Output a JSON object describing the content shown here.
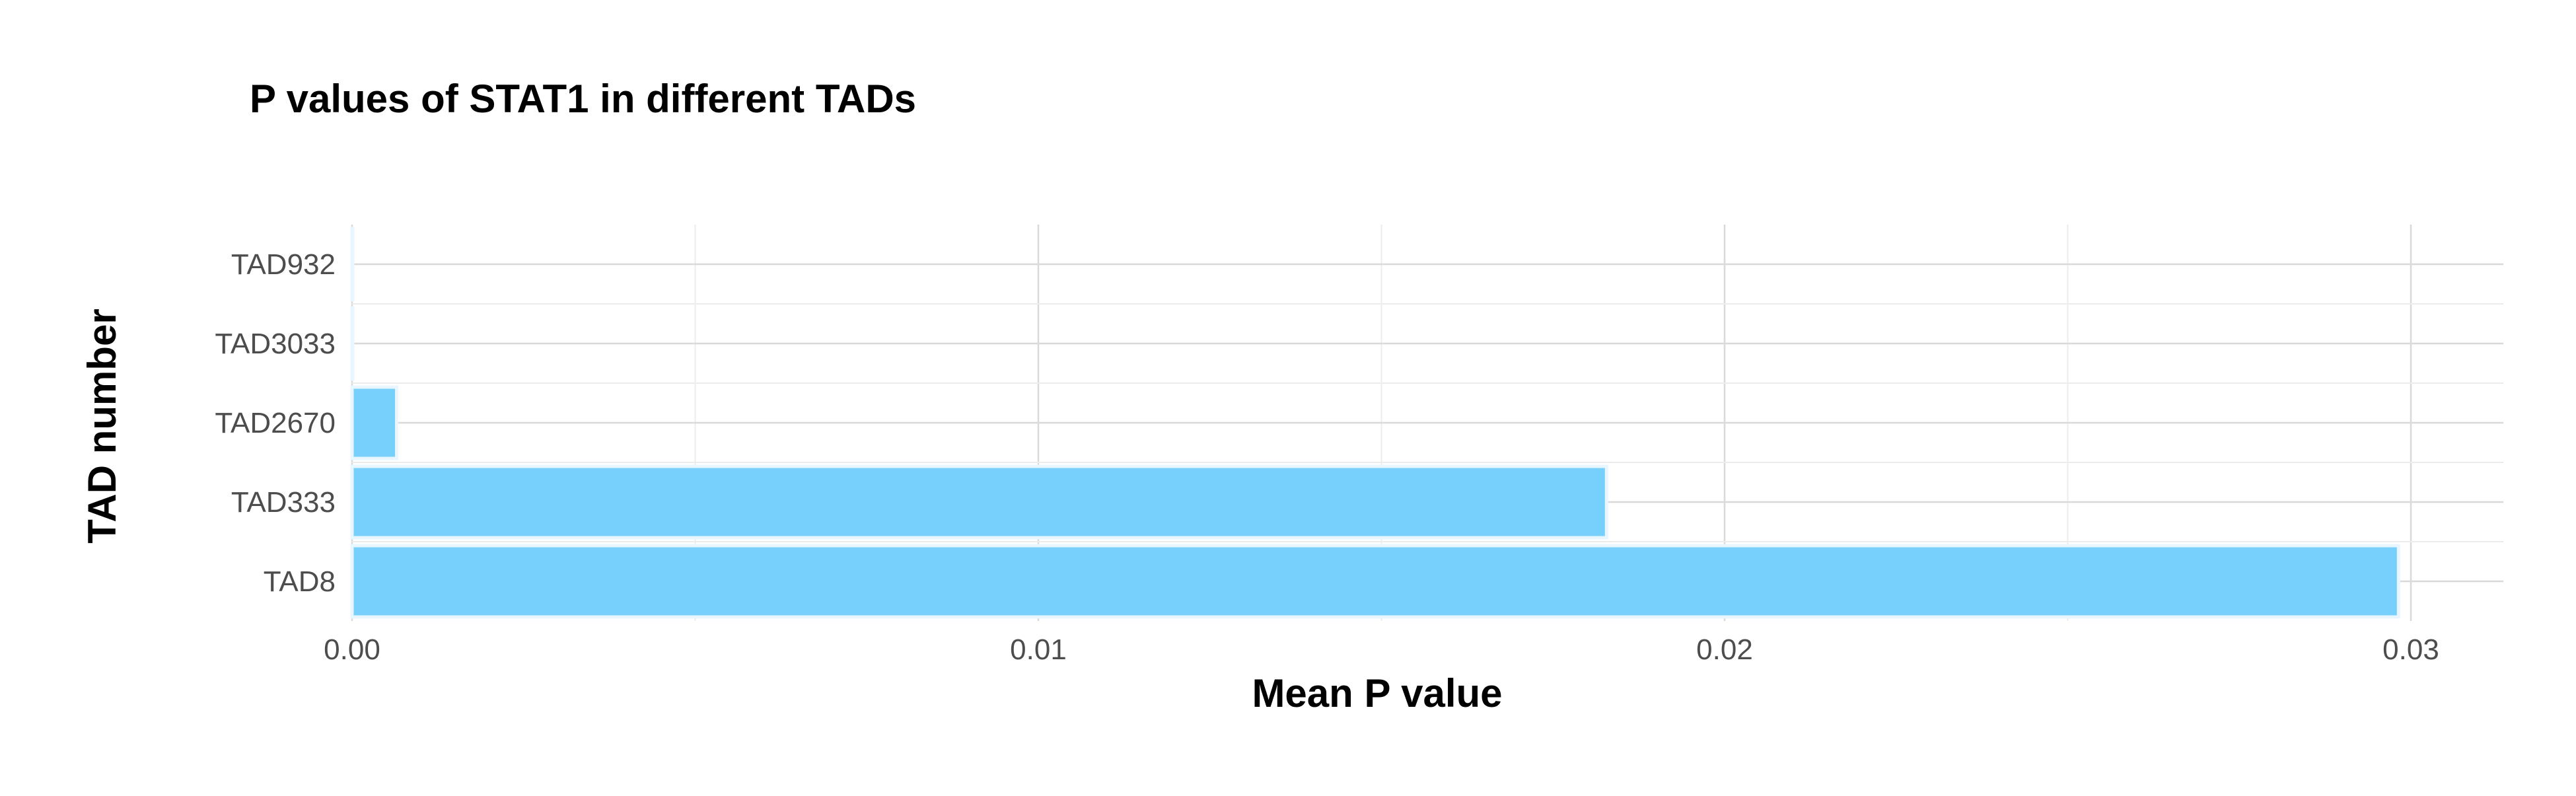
{
  "chart_data": {
    "type": "bar",
    "orientation": "horizontal",
    "title": "P values of STAT1 in different TADs",
    "xlabel": "Mean P value",
    "ylabel": "TAD number",
    "categories": [
      "TAD932",
      "TAD3033",
      "TAD2670",
      "TAD333",
      "TAD8"
    ],
    "values": [
      1e-05,
      1e-05,
      0.00065,
      0.01828,
      0.02982
    ],
    "xlim": [
      0,
      0.03
    ],
    "x_ticks": [
      0,
      0.01,
      0.02,
      0.03
    ],
    "x_tick_labels": [
      "0.00",
      "0.01",
      "0.02",
      "0.03"
    ],
    "grid": true,
    "legend": "none",
    "colors": {
      "bar": "#77cffc",
      "bar_outline": "#e8f6ff",
      "grid": "#d9d9d9"
    }
  }
}
